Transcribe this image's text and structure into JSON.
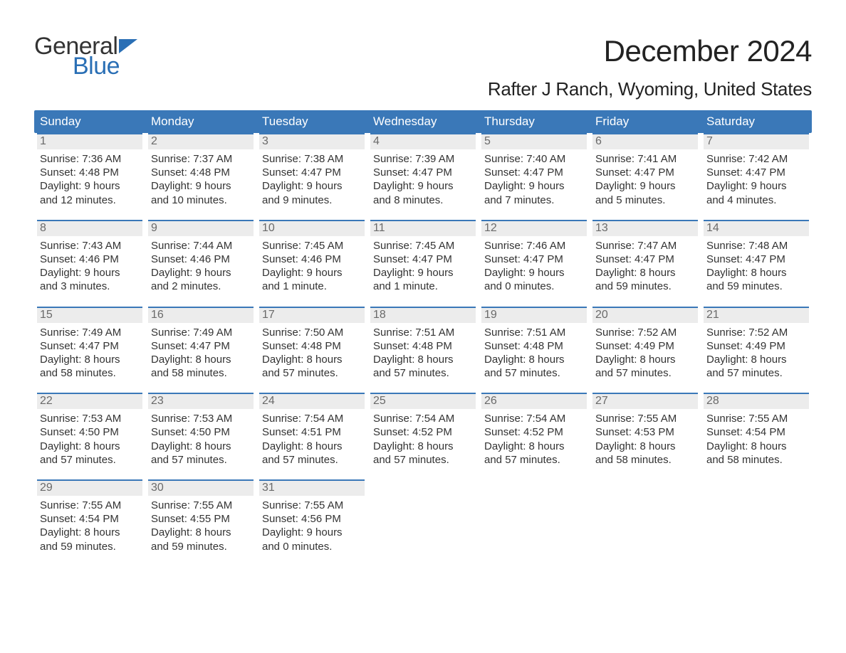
{
  "logo": {
    "word1": "General",
    "word2": "Blue",
    "flag_color": "#2a6fb5",
    "word2_color": "#2a6fb5",
    "word1_color": "#333333"
  },
  "title": "December 2024",
  "location": "Rafter J Ranch, Wyoming, United States",
  "colors": {
    "header_bg": "#3a78b8",
    "header_text": "#ffffff",
    "daynum_bg": "#ececec",
    "daynum_border": "#3a78b8",
    "daynum_text": "#6a6a6a",
    "body_text": "#333333",
    "page_bg": "#ffffff"
  },
  "typography": {
    "month_title_fontsize": 42,
    "location_fontsize": 26,
    "dow_fontsize": 17,
    "daynum_fontsize": 16,
    "body_fontsize": 15
  },
  "days_of_week": [
    "Sunday",
    "Monday",
    "Tuesday",
    "Wednesday",
    "Thursday",
    "Friday",
    "Saturday"
  ],
  "weeks": [
    [
      {
        "n": "1",
        "sunrise": "Sunrise: 7:36 AM",
        "sunset": "Sunset: 4:48 PM",
        "d1": "Daylight: 9 hours",
        "d2": "and 12 minutes."
      },
      {
        "n": "2",
        "sunrise": "Sunrise: 7:37 AM",
        "sunset": "Sunset: 4:48 PM",
        "d1": "Daylight: 9 hours",
        "d2": "and 10 minutes."
      },
      {
        "n": "3",
        "sunrise": "Sunrise: 7:38 AM",
        "sunset": "Sunset: 4:47 PM",
        "d1": "Daylight: 9 hours",
        "d2": "and 9 minutes."
      },
      {
        "n": "4",
        "sunrise": "Sunrise: 7:39 AM",
        "sunset": "Sunset: 4:47 PM",
        "d1": "Daylight: 9 hours",
        "d2": "and 8 minutes."
      },
      {
        "n": "5",
        "sunrise": "Sunrise: 7:40 AM",
        "sunset": "Sunset: 4:47 PM",
        "d1": "Daylight: 9 hours",
        "d2": "and 7 minutes."
      },
      {
        "n": "6",
        "sunrise": "Sunrise: 7:41 AM",
        "sunset": "Sunset: 4:47 PM",
        "d1": "Daylight: 9 hours",
        "d2": "and 5 minutes."
      },
      {
        "n": "7",
        "sunrise": "Sunrise: 7:42 AM",
        "sunset": "Sunset: 4:47 PM",
        "d1": "Daylight: 9 hours",
        "d2": "and 4 minutes."
      }
    ],
    [
      {
        "n": "8",
        "sunrise": "Sunrise: 7:43 AM",
        "sunset": "Sunset: 4:46 PM",
        "d1": "Daylight: 9 hours",
        "d2": "and 3 minutes."
      },
      {
        "n": "9",
        "sunrise": "Sunrise: 7:44 AM",
        "sunset": "Sunset: 4:46 PM",
        "d1": "Daylight: 9 hours",
        "d2": "and 2 minutes."
      },
      {
        "n": "10",
        "sunrise": "Sunrise: 7:45 AM",
        "sunset": "Sunset: 4:46 PM",
        "d1": "Daylight: 9 hours",
        "d2": "and 1 minute."
      },
      {
        "n": "11",
        "sunrise": "Sunrise: 7:45 AM",
        "sunset": "Sunset: 4:47 PM",
        "d1": "Daylight: 9 hours",
        "d2": "and 1 minute."
      },
      {
        "n": "12",
        "sunrise": "Sunrise: 7:46 AM",
        "sunset": "Sunset: 4:47 PM",
        "d1": "Daylight: 9 hours",
        "d2": "and 0 minutes."
      },
      {
        "n": "13",
        "sunrise": "Sunrise: 7:47 AM",
        "sunset": "Sunset: 4:47 PM",
        "d1": "Daylight: 8 hours",
        "d2": "and 59 minutes."
      },
      {
        "n": "14",
        "sunrise": "Sunrise: 7:48 AM",
        "sunset": "Sunset: 4:47 PM",
        "d1": "Daylight: 8 hours",
        "d2": "and 59 minutes."
      }
    ],
    [
      {
        "n": "15",
        "sunrise": "Sunrise: 7:49 AM",
        "sunset": "Sunset: 4:47 PM",
        "d1": "Daylight: 8 hours",
        "d2": "and 58 minutes."
      },
      {
        "n": "16",
        "sunrise": "Sunrise: 7:49 AM",
        "sunset": "Sunset: 4:47 PM",
        "d1": "Daylight: 8 hours",
        "d2": "and 58 minutes."
      },
      {
        "n": "17",
        "sunrise": "Sunrise: 7:50 AM",
        "sunset": "Sunset: 4:48 PM",
        "d1": "Daylight: 8 hours",
        "d2": "and 57 minutes."
      },
      {
        "n": "18",
        "sunrise": "Sunrise: 7:51 AM",
        "sunset": "Sunset: 4:48 PM",
        "d1": "Daylight: 8 hours",
        "d2": "and 57 minutes."
      },
      {
        "n": "19",
        "sunrise": "Sunrise: 7:51 AM",
        "sunset": "Sunset: 4:48 PM",
        "d1": "Daylight: 8 hours",
        "d2": "and 57 minutes."
      },
      {
        "n": "20",
        "sunrise": "Sunrise: 7:52 AM",
        "sunset": "Sunset: 4:49 PM",
        "d1": "Daylight: 8 hours",
        "d2": "and 57 minutes."
      },
      {
        "n": "21",
        "sunrise": "Sunrise: 7:52 AM",
        "sunset": "Sunset: 4:49 PM",
        "d1": "Daylight: 8 hours",
        "d2": "and 57 minutes."
      }
    ],
    [
      {
        "n": "22",
        "sunrise": "Sunrise: 7:53 AM",
        "sunset": "Sunset: 4:50 PM",
        "d1": "Daylight: 8 hours",
        "d2": "and 57 minutes."
      },
      {
        "n": "23",
        "sunrise": "Sunrise: 7:53 AM",
        "sunset": "Sunset: 4:50 PM",
        "d1": "Daylight: 8 hours",
        "d2": "and 57 minutes."
      },
      {
        "n": "24",
        "sunrise": "Sunrise: 7:54 AM",
        "sunset": "Sunset: 4:51 PM",
        "d1": "Daylight: 8 hours",
        "d2": "and 57 minutes."
      },
      {
        "n": "25",
        "sunrise": "Sunrise: 7:54 AM",
        "sunset": "Sunset: 4:52 PM",
        "d1": "Daylight: 8 hours",
        "d2": "and 57 minutes."
      },
      {
        "n": "26",
        "sunrise": "Sunrise: 7:54 AM",
        "sunset": "Sunset: 4:52 PM",
        "d1": "Daylight: 8 hours",
        "d2": "and 57 minutes."
      },
      {
        "n": "27",
        "sunrise": "Sunrise: 7:55 AM",
        "sunset": "Sunset: 4:53 PM",
        "d1": "Daylight: 8 hours",
        "d2": "and 58 minutes."
      },
      {
        "n": "28",
        "sunrise": "Sunrise: 7:55 AM",
        "sunset": "Sunset: 4:54 PM",
        "d1": "Daylight: 8 hours",
        "d2": "and 58 minutes."
      }
    ],
    [
      {
        "n": "29",
        "sunrise": "Sunrise: 7:55 AM",
        "sunset": "Sunset: 4:54 PM",
        "d1": "Daylight: 8 hours",
        "d2": "and 59 minutes."
      },
      {
        "n": "30",
        "sunrise": "Sunrise: 7:55 AM",
        "sunset": "Sunset: 4:55 PM",
        "d1": "Daylight: 8 hours",
        "d2": "and 59 minutes."
      },
      {
        "n": "31",
        "sunrise": "Sunrise: 7:55 AM",
        "sunset": "Sunset: 4:56 PM",
        "d1": "Daylight: 9 hours",
        "d2": "and 0 minutes."
      },
      null,
      null,
      null,
      null
    ]
  ]
}
